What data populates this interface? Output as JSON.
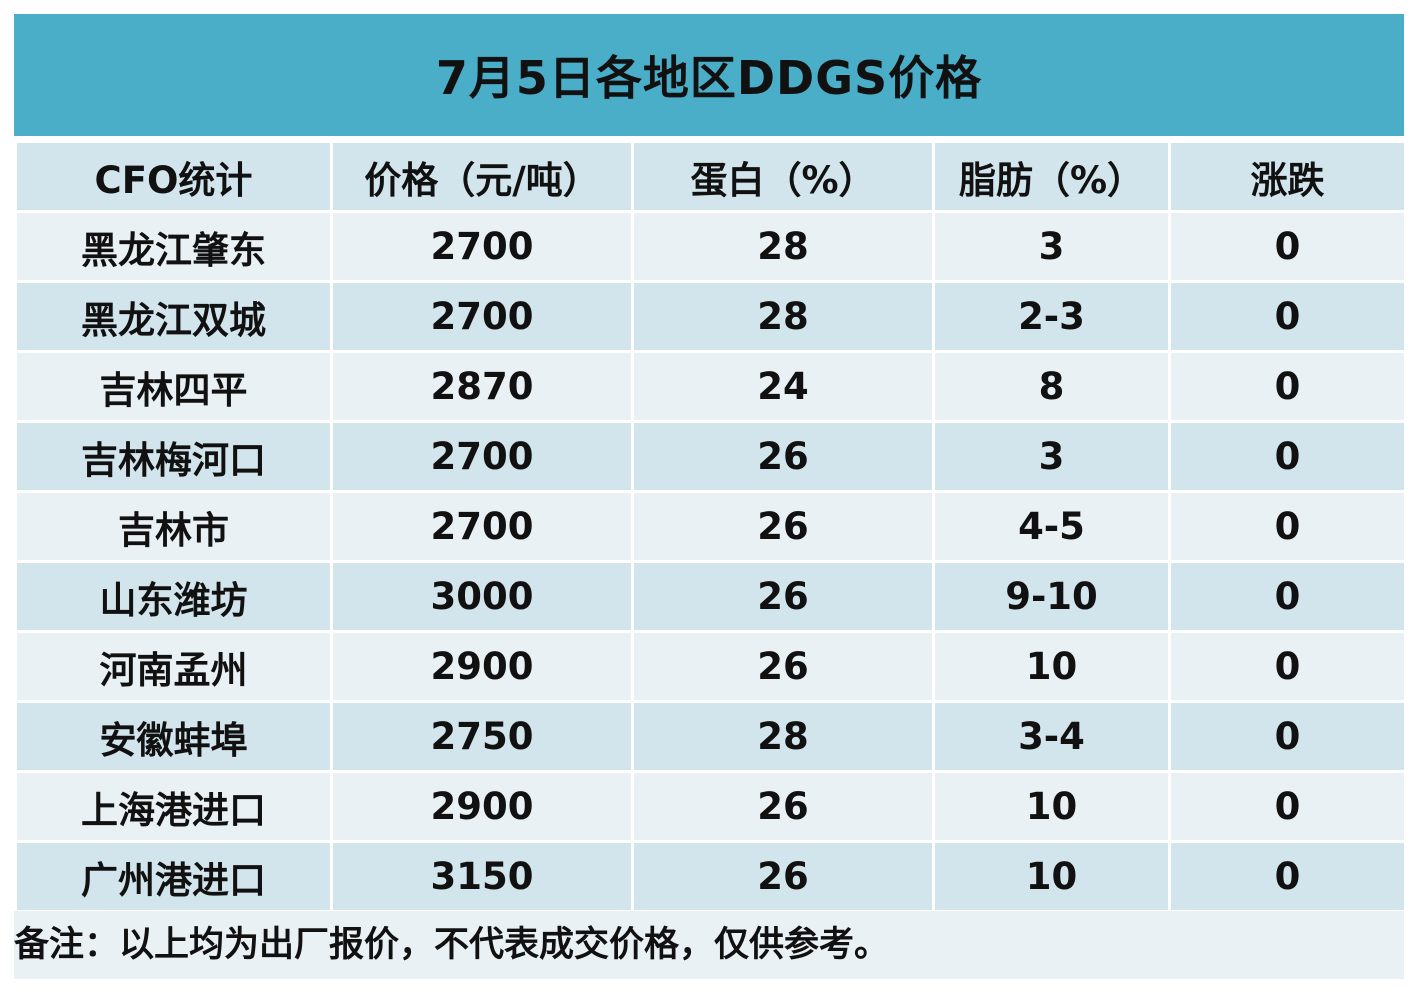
{
  "title": "7月5日各地区DDGS价格",
  "note": "备注：以上均为出厂报价，不代表成交价格，仅供参考。",
  "colors": {
    "title_bg": "#4aaec8",
    "row_light": "#e9f1f5",
    "row_dark": "#d2e4ec"
  },
  "chart_data": {
    "type": "table",
    "title": "7月5日各地区DDGS价格",
    "columns": [
      "CFO统计",
      "价格（元/吨）",
      "蛋白（%）",
      "脂肪（%）",
      "涨跌"
    ],
    "rows": [
      [
        "黑龙江肇东",
        "2700",
        "28",
        "3",
        "0"
      ],
      [
        "黑龙江双城",
        "2700",
        "28",
        "2-3",
        "0"
      ],
      [
        "吉林四平",
        "2870",
        "24",
        "8",
        "0"
      ],
      [
        "吉林梅河口",
        "2700",
        "26",
        "3",
        "0"
      ],
      [
        "吉林市",
        "2700",
        "26",
        "4-5",
        "0"
      ],
      [
        "山东潍坊",
        "3000",
        "26",
        "9-10",
        "0"
      ],
      [
        "河南孟州",
        "2900",
        "26",
        "10",
        "0"
      ],
      [
        "安徽蚌埠",
        "2750",
        "28",
        "3-4",
        "0"
      ],
      [
        "上海港进口",
        "2900",
        "26",
        "10",
        "0"
      ],
      [
        "广州港进口",
        "3150",
        "26",
        "10",
        "0"
      ]
    ]
  }
}
